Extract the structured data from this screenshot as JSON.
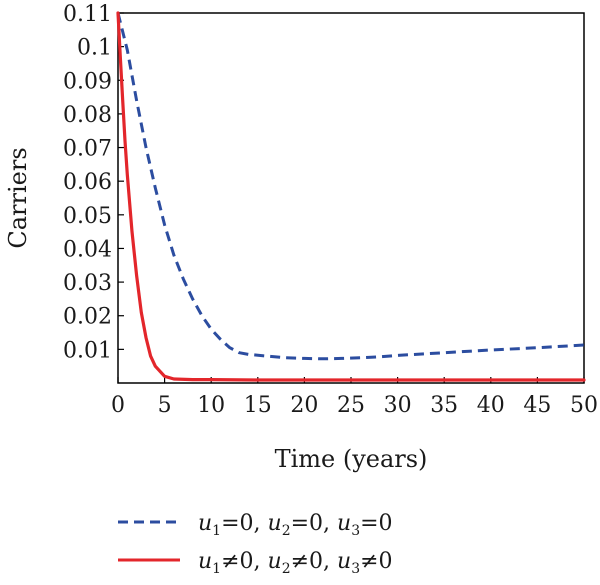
{
  "chart_data": {
    "type": "line",
    "xlabel": "Time (years)",
    "ylabel": "Carriers",
    "xlim": [
      0,
      50
    ],
    "ylim": [
      0,
      0.11
    ],
    "x_ticks": [
      "0",
      "5",
      "10",
      "15",
      "20",
      "25",
      "30",
      "35",
      "40",
      "45",
      "50"
    ],
    "y_ticks": [
      "0.01",
      "0.02",
      "0.03",
      "0.04",
      "0.05",
      "0.06",
      "0.07",
      "0.08",
      "0.09",
      "0.1",
      "0.11"
    ],
    "legend_position": "bottom",
    "series": [
      {
        "name": "u1=0, u2=0, u3=0",
        "legend": {
          "pieces": [
            [
              "u",
              "1",
              "=0, "
            ],
            [
              "u",
              "2",
              "=0, "
            ],
            [
              "u",
              "3",
              "=0"
            ]
          ]
        },
        "color": "#2c4da0",
        "style": "dashed",
        "x": [
          0,
          1,
          2,
          3,
          4,
          5,
          6,
          7,
          8,
          9,
          10,
          11,
          12,
          13,
          14,
          16,
          18,
          20,
          22,
          24,
          26,
          28,
          30,
          35,
          40,
          45,
          50
        ],
        "y": [
          0.11,
          0.099,
          0.084,
          0.07,
          0.058,
          0.047,
          0.038,
          0.031,
          0.025,
          0.02,
          0.016,
          0.013,
          0.0105,
          0.009,
          0.0085,
          0.008,
          0.0075,
          0.0073,
          0.0072,
          0.0073,
          0.0075,
          0.0078,
          0.0082,
          0.009,
          0.0098,
          0.0105,
          0.0113
        ]
      },
      {
        "name": "u1≠0, u2≠0, u3≠0",
        "legend": {
          "pieces": [
            [
              "u",
              "1",
              "≠0, "
            ],
            [
              "u",
              "2",
              "≠0, "
            ],
            [
              "u",
              "3",
              "≠0"
            ]
          ]
        },
        "color": "#e3262b",
        "style": "solid",
        "x": [
          0,
          0.25,
          0.5,
          0.75,
          1,
          1.5,
          2,
          2.5,
          3,
          3.5,
          4,
          5,
          6,
          8,
          10,
          15,
          20,
          30,
          40,
          50
        ],
        "y": [
          0.11,
          0.097,
          0.084,
          0.072,
          0.062,
          0.045,
          0.032,
          0.021,
          0.0135,
          0.008,
          0.005,
          0.002,
          0.0012,
          0.001,
          0.001,
          0.0009,
          0.0009,
          0.0009,
          0.0009,
          0.0009
        ]
      }
    ]
  }
}
